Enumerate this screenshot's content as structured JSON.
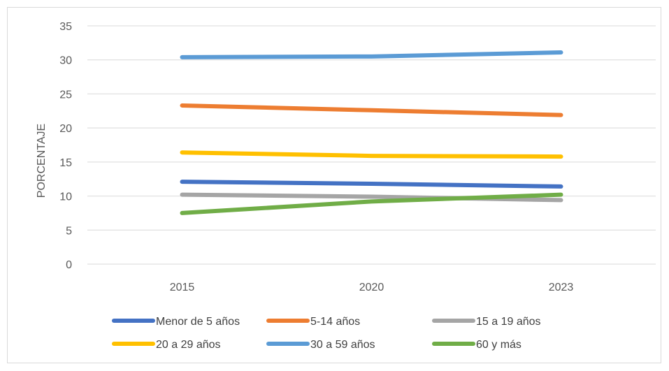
{
  "chart_data": {
    "type": "line",
    "title": "",
    "xlabel": "",
    "ylabel": "PORCENTAJE",
    "x": [
      "2015",
      "2020",
      "2023"
    ],
    "ylim": [
      0,
      35
    ],
    "yticks": [
      "0",
      "5",
      "10",
      "15",
      "20",
      "25",
      "30",
      "35"
    ],
    "grid": true,
    "legend_position": "bottom",
    "series": [
      {
        "name": "Menor de 5 años",
        "color": "#4472c4",
        "values": [
          12.1,
          11.8,
          11.4
        ]
      },
      {
        "name": "5-14 años",
        "color": "#ed7d31",
        "values": [
          23.3,
          22.6,
          21.9
        ]
      },
      {
        "name": "15 a 19 años",
        "color": "#a5a5a5",
        "values": [
          10.2,
          9.9,
          9.4
        ]
      },
      {
        "name": "20 a 29 años",
        "color": "#ffc000",
        "values": [
          16.4,
          15.9,
          15.8
        ]
      },
      {
        "name": "30 a 59 años",
        "color": "#5b9bd5",
        "values": [
          30.4,
          30.5,
          31.1
        ]
      },
      {
        "name": "60 y más",
        "color": "#70ad47",
        "values": [
          7.5,
          9.2,
          10.2
        ]
      }
    ]
  }
}
